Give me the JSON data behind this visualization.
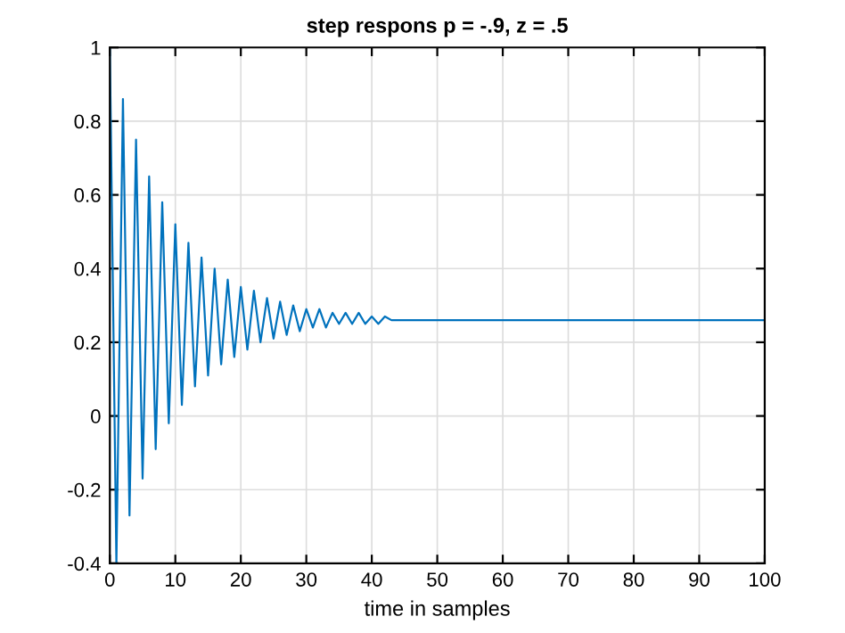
{
  "chart_data": {
    "type": "line",
    "title": "step respons p = -.9, z = .5",
    "xlabel": "time in samples",
    "series": [
      {
        "color": "#0072bd",
        "x": [
          0,
          1,
          2,
          3,
          4,
          5,
          6,
          7,
          8,
          9,
          10,
          11,
          12,
          13,
          14,
          15,
          16,
          17,
          18,
          19,
          20,
          21,
          22,
          23,
          24,
          25,
          26,
          27,
          28,
          29,
          30,
          31,
          32,
          33,
          34,
          35,
          36,
          37,
          38,
          39,
          40,
          41,
          42,
          43,
          44,
          100
        ],
        "values": [
          1.0,
          -0.4,
          0.86,
          -0.27,
          0.75,
          -0.17,
          0.65,
          -0.09,
          0.58,
          -0.02,
          0.52,
          0.03,
          0.47,
          0.08,
          0.43,
          0.11,
          0.4,
          0.14,
          0.37,
          0.16,
          0.35,
          0.18,
          0.34,
          0.2,
          0.32,
          0.21,
          0.31,
          0.22,
          0.3,
          0.23,
          0.29,
          0.24,
          0.29,
          0.24,
          0.28,
          0.25,
          0.28,
          0.25,
          0.28,
          0.25,
          0.27,
          0.25,
          0.27,
          0.26,
          0.26,
          0.26
        ]
      }
    ],
    "xlim": [
      0,
      100
    ],
    "xticks": [
      0,
      10,
      20,
      30,
      40,
      50,
      60,
      70,
      80,
      90,
      100
    ],
    "ylim": [
      -0.4,
      1
    ],
    "yticks": [
      {
        "value": -0.4,
        "label": "-0.4"
      },
      {
        "value": -0.2,
        "label": "-0.2"
      },
      0,
      {
        "value": 0.2,
        "label": "0.2"
      },
      {
        "value": 0.4,
        "label": "0.4"
      },
      {
        "value": 0.6,
        "label": "0.6"
      },
      {
        "value": 0.8,
        "label": "0.8"
      },
      1
    ],
    "grid": true,
    "legend": false,
    "marker": "none",
    "line_style": "solid"
  }
}
